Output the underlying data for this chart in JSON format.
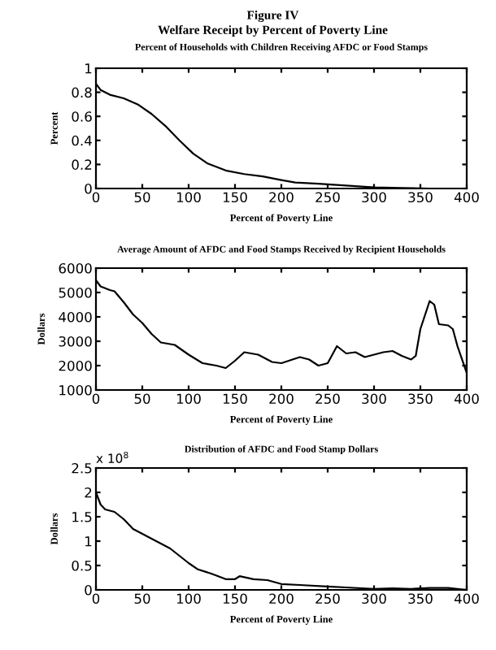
{
  "chart_data": [
    {
      "type": "line",
      "title": "Percent of Households with Children Receiving AFDC or Food Stamps",
      "xlabel": "Percent of Poverty Line",
      "ylabel": "Percent",
      "annotations": [
        "Figure IV",
        "Welfare Receipt by Percent of Poverty Line"
      ],
      "color": "#000000",
      "x": [
        0,
        5,
        15,
        30,
        45,
        60,
        75,
        90,
        105,
        120,
        140,
        160,
        180,
        200,
        215,
        240,
        260,
        280,
        300,
        330,
        360,
        400
      ],
      "values": [
        0.87,
        0.82,
        0.78,
        0.75,
        0.7,
        0.62,
        0.52,
        0.4,
        0.29,
        0.21,
        0.15,
        0.12,
        0.1,
        0.07,
        0.05,
        0.04,
        0.03,
        0.02,
        0.01,
        0.005,
        0.0,
        0.0
      ],
      "xlim": [
        0,
        400
      ],
      "xticks": [
        0,
        50,
        100,
        150,
        200,
        250,
        300,
        350,
        400
      ],
      "ylim": [
        0,
        1
      ],
      "yticks": [
        0,
        0.2,
        0.4,
        0.6,
        0.8,
        1
      ]
    },
    {
      "type": "line",
      "title": "Average Amount of AFDC and Food Stamps Received by Recipient Households",
      "xlabel": "Percent of Poverty Line",
      "ylabel": "Dollars",
      "color": "#000000",
      "x": [
        0,
        5,
        15,
        20,
        30,
        40,
        50,
        60,
        70,
        85,
        100,
        115,
        130,
        140,
        150,
        160,
        175,
        190,
        200,
        220,
        230,
        240,
        250,
        260,
        270,
        280,
        290,
        300,
        310,
        320,
        330,
        340,
        345,
        350,
        360,
        365,
        370,
        380,
        385,
        390,
        400
      ],
      "values": [
        5500,
        5250,
        5100,
        5050,
        4600,
        4100,
        3750,
        3300,
        2950,
        2850,
        2450,
        2100,
        2000,
        1900,
        2200,
        2550,
        2450,
        2150,
        2100,
        2350,
        2250,
        2000,
        2100,
        2800,
        2500,
        2550,
        2350,
        2450,
        2550,
        2600,
        2400,
        2250,
        2400,
        3500,
        4650,
        4500,
        3700,
        3650,
        3500,
        2800,
        1700
      ],
      "xlim": [
        0,
        400
      ],
      "xticks": [
        0,
        50,
        100,
        150,
        200,
        250,
        300,
        350,
        400
      ],
      "ylim": [
        1000,
        6000
      ],
      "yticks": [
        1000,
        2000,
        3000,
        4000,
        5000,
        6000
      ]
    },
    {
      "type": "line",
      "title": "Distribution of AFDC and Food Stamp Dollars",
      "xlabel": "Percent of Poverty Line",
      "ylabel": "Dollars",
      "annotations": [
        "x 10$^{8}$"
      ],
      "color": "#000000",
      "x": [
        0,
        5,
        10,
        20,
        30,
        40,
        55,
        70,
        80,
        90,
        100,
        110,
        125,
        140,
        150,
        155,
        170,
        185,
        200,
        220,
        250,
        270,
        300,
        320,
        340,
        360,
        380,
        400
      ],
      "values": [
        2.0,
        1.75,
        1.65,
        1.6,
        1.45,
        1.25,
        1.1,
        0.95,
        0.85,
        0.7,
        0.55,
        0.42,
        0.33,
        0.22,
        0.22,
        0.28,
        0.22,
        0.2,
        0.12,
        0.1,
        0.07,
        0.05,
        0.02,
        0.03,
        0.02,
        0.04,
        0.04,
        0.0
      ],
      "xlim": [
        0,
        400
      ],
      "xticks": [
        0,
        50,
        100,
        150,
        200,
        250,
        300,
        350,
        400
      ],
      "ylim": [
        0,
        2.5
      ],
      "yticks": [
        0,
        0.5,
        1,
        1.5,
        2,
        2.5
      ]
    }
  ]
}
